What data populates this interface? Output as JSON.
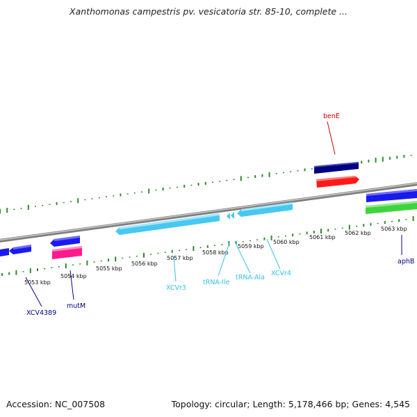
{
  "header": {
    "title": "Xanthomonas campestris pv. vesicatoria str. 85-10, complete ..."
  },
  "footer": {
    "accession": "Accession: NC_007508",
    "topology": "Topology: circular; Length: 5,178,466 bp; Genes: 4,545"
  },
  "map": {
    "scale_ticks": [
      "5053 kbp",
      "5054 kbp",
      "5055 kbp",
      "5056 kbp",
      "5057 kbp",
      "5058 kbp",
      "5059 kbp",
      "5060 kbp",
      "5061 kbp",
      "5062 kbp",
      "5063 kbp"
    ],
    "features": [
      {
        "label": "benE",
        "color": "#cc0000",
        "strand": "forward"
      },
      {
        "label": "aphB",
        "color": "#000080",
        "strand": "forward"
      },
      {
        "label": "XCV4389",
        "color": "#000080",
        "strand": "reverse"
      },
      {
        "label": "mutM",
        "color": "#000080",
        "strand": "reverse"
      },
      {
        "label": "XCVr3",
        "color": "#33c3e8",
        "strand": "reverse"
      },
      {
        "label": "tRNA-Ile",
        "color": "#33c3e8",
        "strand": "reverse"
      },
      {
        "label": "tRNA-Ala",
        "color": "#33c3e8",
        "strand": "reverse"
      },
      {
        "label": "XCVr4",
        "color": "#33c3e8",
        "strand": "reverse"
      }
    ],
    "colors": {
      "backbone": "#8f8f8f",
      "gc_ticks": "#2b8a2b",
      "cds_blue": "#1a1aee",
      "cds_navy": "#000080",
      "cds_red": "#ff1a1a",
      "cds_green": "#3fd43f",
      "cds_pink": "#ff1a8c",
      "rrna_cyan": "#47c8f0"
    }
  }
}
